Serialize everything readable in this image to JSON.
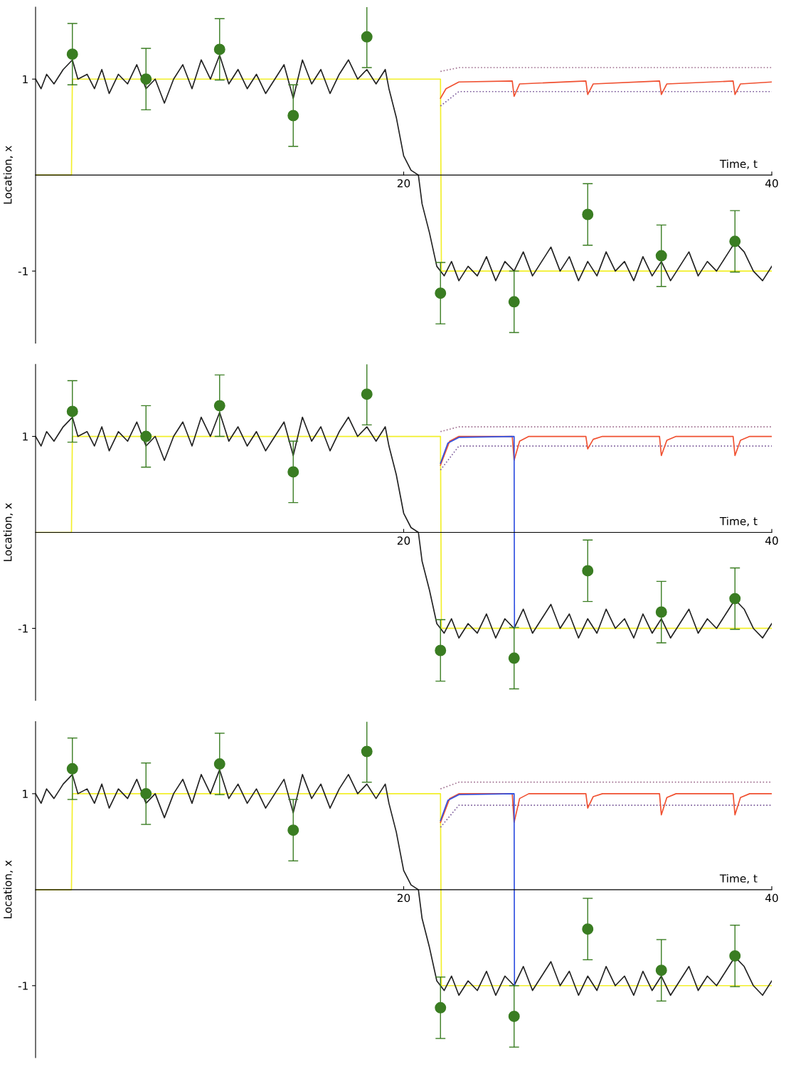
{
  "chart_data": [
    {
      "type": "line",
      "xlabel": "Time, t",
      "ylabel": "Location, x",
      "xlim": [
        0,
        40
      ],
      "ylim": [
        -1.75,
        1.75
      ],
      "xticks": [
        20,
        40
      ],
      "yticks": [
        1,
        -1
      ],
      "grid": false,
      "series": [
        {
          "color": "#f2ef2a",
          "x": [
            0,
            1.95,
            2,
            22,
            22.05,
            40
          ],
          "values": [
            0,
            0,
            1,
            1,
            -1,
            -1
          ]
        },
        {
          "color": "#222222",
          "x": [
            0,
            0.3,
            0.6,
            1,
            1.5,
            2,
            2.3,
            2.8,
            3.2,
            3.6,
            4,
            4.5,
            5,
            5.5,
            6,
            6.5,
            7,
            7.5,
            8,
            8.5,
            9,
            9.5,
            10,
            10.5,
            11,
            11.5,
            12,
            12.5,
            13,
            13.5,
            14,
            14.5,
            15,
            15.5,
            16,
            16.5,
            17,
            17.5,
            18,
            18.5,
            19,
            19.2,
            19.6,
            20,
            20.4,
            20.8,
            21,
            21.4,
            21.8,
            22.2,
            22.6,
            23,
            23.5,
            24,
            24.5,
            25,
            25.5,
            26,
            26.5,
            27,
            27.5,
            28,
            28.5,
            29,
            29.5,
            30,
            30.5,
            31,
            31.5,
            32,
            32.5,
            33,
            33.5,
            34,
            34.5,
            35,
            35.5,
            36,
            36.5,
            37,
            37.5,
            38,
            38.5,
            39,
            39.5,
            40
          ],
          "values": [
            1.0,
            0.9,
            1.05,
            0.95,
            1.1,
            1.2,
            1.0,
            1.05,
            0.9,
            1.1,
            0.85,
            1.05,
            0.95,
            1.15,
            0.9,
            1.0,
            0.75,
            1.0,
            1.15,
            0.9,
            1.2,
            1.0,
            1.25,
            0.95,
            1.1,
            0.9,
            1.05,
            0.85,
            1.0,
            1.15,
            0.8,
            1.2,
            0.95,
            1.1,
            0.85,
            1.05,
            1.2,
            1.0,
            1.1,
            0.95,
            1.1,
            0.9,
            0.6,
            0.2,
            0.05,
            0.0,
            -0.3,
            -0.6,
            -0.95,
            -1.05,
            -0.9,
            -1.1,
            -0.95,
            -1.05,
            -0.85,
            -1.1,
            -0.9,
            -1.0,
            -0.8,
            -1.05,
            -0.9,
            -0.75,
            -1.0,
            -0.85,
            -1.1,
            -0.9,
            -1.05,
            -0.8,
            -1.0,
            -0.9,
            -1.1,
            -0.85,
            -1.05,
            -0.9,
            -1.1,
            -0.95,
            -0.8,
            -1.05,
            -0.9,
            -1.0,
            -0.85,
            -0.7,
            -0.8,
            -1.0,
            -1.1,
            -0.95
          ]
        },
        {
          "color": "#a07090",
          "line_style": "dotted",
          "x": [
            22,
            23,
            40
          ],
          "values": [
            1.08,
            1.12,
            1.12
          ]
        },
        {
          "color": "#7a5a9a",
          "line_style": "dotted",
          "x": [
            22,
            23,
            40
          ],
          "values": [
            0.72,
            0.87,
            0.87
          ]
        },
        {
          "color": "#f05030",
          "x": [
            22,
            22.3,
            23,
            25.9,
            26,
            26.3,
            29.9,
            30,
            30.3,
            33.9,
            34,
            34.3,
            37.9,
            38,
            38.3,
            40
          ],
          "values": [
            0.8,
            0.9,
            0.97,
            0.98,
            0.82,
            0.95,
            0.98,
            0.84,
            0.95,
            0.98,
            0.84,
            0.95,
            0.98,
            0.84,
            0.95,
            0.97
          ]
        },
        {
          "type": "scatter",
          "color": "#3a7d22",
          "marker": "circle",
          "x": [
            2,
            6,
            10,
            14,
            18,
            22,
            26,
            30,
            34,
            38
          ],
          "values": [
            1.26,
            1.0,
            1.31,
            0.62,
            1.44,
            -1.23,
            -1.32,
            -0.41,
            -0.84,
            -0.69
          ],
          "errors": [
            0.32,
            0.32,
            0.32,
            0.32,
            0.32,
            0.32,
            0.32,
            0.32,
            0.32,
            0.32
          ]
        }
      ]
    },
    {
      "type": "line",
      "xlabel": "Time, t",
      "ylabel": "Location, x",
      "xlim": [
        0,
        40
      ],
      "ylim": [
        -1.75,
        1.75
      ],
      "xticks": [
        20,
        40
      ],
      "yticks": [
        1,
        -1
      ],
      "grid": false,
      "series": [
        {
          "type": "line",
          "color": "#f2ef2a",
          "x": [
            0,
            1.95,
            2,
            22,
            22.05,
            40
          ],
          "values": [
            0,
            0,
            1,
            1,
            -1,
            -1
          ]
        },
        {
          "type": "line",
          "color": "#222222",
          "x": [
            0,
            0.3,
            0.6,
            1,
            1.5,
            2,
            2.3,
            2.8,
            3.2,
            3.6,
            4,
            4.5,
            5,
            5.5,
            6,
            6.5,
            7,
            7.5,
            8,
            8.5,
            9,
            9.5,
            10,
            10.5,
            11,
            11.5,
            12,
            12.5,
            13,
            13.5,
            14,
            14.5,
            15,
            15.5,
            16,
            16.5,
            17,
            17.5,
            18,
            18.5,
            19,
            19.2,
            19.6,
            20,
            20.4,
            20.8,
            21,
            21.4,
            21.8,
            22.2,
            22.6,
            23,
            23.5,
            24,
            24.5,
            25,
            25.5,
            26,
            26.5,
            27,
            27.5,
            28,
            28.5,
            29,
            29.5,
            30,
            30.5,
            31,
            31.5,
            32,
            32.5,
            33,
            33.5,
            34,
            34.5,
            35,
            35.5,
            36,
            36.5,
            37,
            37.5,
            38,
            38.5,
            39,
            39.5,
            40
          ],
          "values": [
            1.0,
            0.9,
            1.05,
            0.95,
            1.1,
            1.2,
            1.0,
            1.05,
            0.9,
            1.1,
            0.85,
            1.05,
            0.95,
            1.15,
            0.9,
            1.0,
            0.75,
            1.0,
            1.15,
            0.9,
            1.2,
            1.0,
            1.25,
            0.95,
            1.1,
            0.9,
            1.05,
            0.85,
            1.0,
            1.15,
            0.8,
            1.2,
            0.95,
            1.1,
            0.85,
            1.05,
            1.2,
            1.0,
            1.1,
            0.95,
            1.1,
            0.9,
            0.6,
            0.2,
            0.05,
            0.0,
            -0.3,
            -0.6,
            -0.95,
            -1.05,
            -0.9,
            -1.1,
            -0.95,
            -1.05,
            -0.85,
            -1.1,
            -0.9,
            -1.0,
            -0.8,
            -1.05,
            -0.9,
            -0.75,
            -1.0,
            -0.85,
            -1.1,
            -0.9,
            -1.05,
            -0.8,
            -1.0,
            -0.9,
            -1.1,
            -0.85,
            -1.05,
            -0.9,
            -1.1,
            -0.95,
            -0.8,
            -1.05,
            -0.9,
            -1.0,
            -0.85,
            -0.7,
            -0.8,
            -1.0,
            -1.1,
            -0.95
          ]
        },
        {
          "type": "line",
          "color": "#a07090",
          "line_style": "dotted",
          "x": [
            22,
            23,
            40
          ],
          "values": [
            1.05,
            1.1,
            1.1
          ]
        },
        {
          "type": "line",
          "color": "#7a5a9a",
          "line_style": "dotted",
          "x": [
            22,
            23,
            40
          ],
          "values": [
            0.65,
            0.9,
            0.9
          ]
        },
        {
          "type": "line",
          "color": "#f05030",
          "x": [
            22,
            22.5,
            23,
            25.9,
            26,
            26.3,
            26.8,
            29.9,
            30,
            30.3,
            30.8,
            33.9,
            34,
            34.3,
            34.8,
            37.9,
            38,
            38.3,
            38.8,
            40
          ],
          "values": [
            0.7,
            0.95,
            1.0,
            1.0,
            0.75,
            0.95,
            1.0,
            1.0,
            0.87,
            0.97,
            1.0,
            1.0,
            0.8,
            0.96,
            1.0,
            1.0,
            0.8,
            0.96,
            1.0,
            1.0
          ]
        },
        {
          "type": "line",
          "color": "#3050e0",
          "x": [
            22,
            22.4,
            23,
            26,
            26.02
          ],
          "values": [
            0.72,
            0.93,
            0.99,
            1.0,
            -1.0
          ]
        },
        {
          "type": "scatter",
          "color": "#3a7d22",
          "marker": "circle",
          "x": [
            2,
            6,
            10,
            14,
            18,
            22,
            26,
            30,
            34,
            38
          ],
          "values": [
            1.26,
            1.0,
            1.32,
            0.63,
            1.44,
            -1.23,
            -1.31,
            -0.4,
            -0.83,
            -0.69
          ],
          "errors": [
            0.32,
            0.32,
            0.32,
            0.32,
            0.32,
            0.32,
            0.32,
            0.32,
            0.32,
            0.32
          ]
        }
      ]
    },
    {
      "type": "line",
      "xlabel": "Time, t",
      "ylabel": "Location, x",
      "xlim": [
        0,
        40
      ],
      "ylim": [
        -1.75,
        1.75
      ],
      "xticks": [
        20,
        40
      ],
      "yticks": [
        1,
        -1
      ],
      "grid": false,
      "series": [
        {
          "type": "line",
          "color": "#f2ef2a",
          "x": [
            0,
            1.95,
            2,
            22,
            22.05,
            40
          ],
          "values": [
            0,
            0,
            1,
            1,
            -1,
            -1
          ]
        },
        {
          "type": "line",
          "color": "#222222",
          "x": [
            0,
            0.3,
            0.6,
            1,
            1.5,
            2,
            2.3,
            2.8,
            3.2,
            3.6,
            4,
            4.5,
            5,
            5.5,
            6,
            6.5,
            7,
            7.5,
            8,
            8.5,
            9,
            9.5,
            10,
            10.5,
            11,
            11.5,
            12,
            12.5,
            13,
            13.5,
            14,
            14.5,
            15,
            15.5,
            16,
            16.5,
            17,
            17.5,
            18,
            18.5,
            19,
            19.2,
            19.6,
            20,
            20.4,
            20.8,
            21,
            21.4,
            21.8,
            22.2,
            22.6,
            23,
            23.5,
            24,
            24.5,
            25,
            25.5,
            26,
            26.5,
            27,
            27.5,
            28,
            28.5,
            29,
            29.5,
            30,
            30.5,
            31,
            31.5,
            32,
            32.5,
            33,
            33.5,
            34,
            34.5,
            35,
            35.5,
            36,
            36.5,
            37,
            37.5,
            38,
            38.5,
            39,
            39.5,
            40
          ],
          "values": [
            1.0,
            0.9,
            1.05,
            0.95,
            1.1,
            1.2,
            1.0,
            1.05,
            0.9,
            1.1,
            0.85,
            1.05,
            0.95,
            1.15,
            0.9,
            1.0,
            0.75,
            1.0,
            1.15,
            0.9,
            1.2,
            1.0,
            1.25,
            0.95,
            1.1,
            0.9,
            1.05,
            0.85,
            1.0,
            1.15,
            0.8,
            1.2,
            0.95,
            1.1,
            0.85,
            1.05,
            1.2,
            1.0,
            1.1,
            0.95,
            1.1,
            0.9,
            0.6,
            0.2,
            0.05,
            0.0,
            -0.3,
            -0.6,
            -0.95,
            -1.05,
            -0.9,
            -1.1,
            -0.95,
            -1.05,
            -0.85,
            -1.1,
            -0.9,
            -1.0,
            -0.8,
            -1.05,
            -0.9,
            -0.75,
            -1.0,
            -0.85,
            -1.1,
            -0.9,
            -1.05,
            -0.8,
            -1.0,
            -0.9,
            -1.1,
            -0.85,
            -1.05,
            -0.9,
            -1.1,
            -0.95,
            -0.8,
            -1.05,
            -0.9,
            -1.0,
            -0.85,
            -0.7,
            -0.8,
            -1.0,
            -1.1,
            -0.95
          ]
        },
        {
          "type": "line",
          "color": "#a07090",
          "line_style": "dotted",
          "x": [
            22,
            23,
            40
          ],
          "values": [
            1.05,
            1.12,
            1.12
          ]
        },
        {
          "type": "line",
          "color": "#7a5a9a",
          "line_style": "dotted",
          "x": [
            22,
            23,
            40
          ],
          "values": [
            0.65,
            0.88,
            0.88
          ]
        },
        {
          "type": "line",
          "color": "#f05030",
          "x": [
            22,
            22.5,
            23,
            25.9,
            26,
            26.3,
            26.8,
            29.9,
            30,
            30.3,
            30.8,
            33.9,
            34,
            34.3,
            34.8,
            37.9,
            38,
            38.3,
            38.8,
            40
          ],
          "values": [
            0.7,
            0.95,
            1.0,
            1.0,
            0.7,
            0.95,
            1.0,
            1.0,
            0.85,
            0.97,
            1.0,
            1.0,
            0.78,
            0.96,
            1.0,
            1.0,
            0.78,
            0.96,
            1.0,
            1.0
          ]
        },
        {
          "type": "line",
          "color": "#3050e0",
          "x": [
            22,
            22.4,
            23,
            26,
            26.02
          ],
          "values": [
            0.72,
            0.93,
            0.99,
            1.0,
            -1.0
          ]
        },
        {
          "type": "scatter",
          "color": "#3a7d22",
          "marker": "circle",
          "x": [
            2,
            6,
            10,
            14,
            18,
            22,
            26,
            30,
            34,
            38
          ],
          "values": [
            1.26,
            1.0,
            1.31,
            0.62,
            1.44,
            -1.23,
            -1.32,
            -0.41,
            -0.84,
            -0.69
          ],
          "errors": [
            0.32,
            0.32,
            0.32,
            0.32,
            0.32,
            0.32,
            0.32,
            0.32,
            0.32,
            0.32
          ]
        }
      ]
    }
  ]
}
